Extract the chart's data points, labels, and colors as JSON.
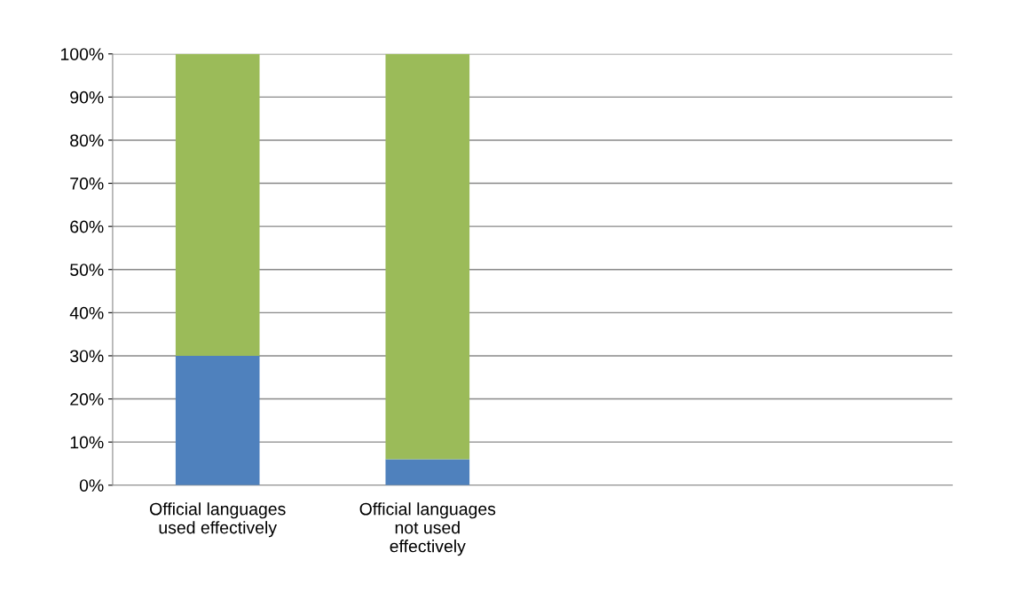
{
  "chart_data": {
    "type": "bar",
    "stacked": true,
    "categories": [
      "Official languages\nused effectively",
      "Official languages\nnot used\neffectively",
      null,
      null
    ],
    "series": [
      {
        "color": "#4f81bd",
        "values": [
          30,
          6,
          null,
          null
        ]
      },
      {
        "color": "#9bbb59",
        "values": [
          70,
          94,
          null,
          null
        ]
      }
    ],
    "ylim": [
      0,
      100
    ],
    "yticks": [
      {
        "value": 0,
        "label": "0%"
      },
      {
        "value": 10,
        "label": "10%"
      },
      {
        "value": 20,
        "label": "20%"
      },
      {
        "value": 30,
        "label": "30%"
      },
      {
        "value": 40,
        "label": "40%"
      },
      {
        "value": 50,
        "label": "50%"
      },
      {
        "value": 60,
        "label": "60%"
      },
      {
        "value": 70,
        "label": "70%"
      },
      {
        "value": 80,
        "label": "80%"
      },
      {
        "value": 90,
        "label": "90%"
      },
      {
        "value": 100,
        "label": "100%"
      }
    ],
    "grid": "y",
    "legend": false
  }
}
